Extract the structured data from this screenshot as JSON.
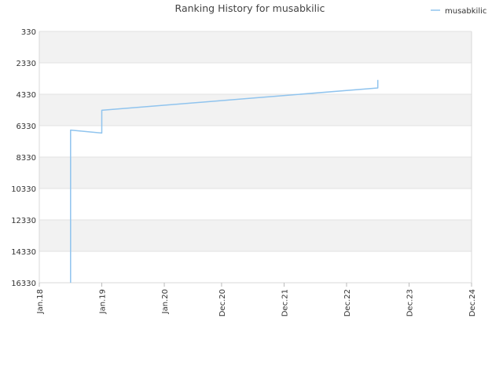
{
  "chart_data": {
    "type": "line",
    "title": "Ranking History for musabkilic",
    "xlabel": "",
    "ylabel": "",
    "y_inverted": true,
    "ylim": [
      330,
      16330
    ],
    "y_ticks": [
      330,
      2330,
      4330,
      6330,
      8330,
      10330,
      12330,
      14330,
      16330
    ],
    "x_ticks": [
      {
        "label": "Jan.18",
        "date": "2018-01"
      },
      {
        "label": "Jan.19",
        "date": "2019-01"
      },
      {
        "label": "Jan.20",
        "date": "2020-01"
      },
      {
        "label": "Dec.20",
        "date": "2020-12"
      },
      {
        "label": "Dec.21",
        "date": "2021-12"
      },
      {
        "label": "Dec.22",
        "date": "2022-12"
      },
      {
        "label": "Dec.23",
        "date": "2023-12"
      },
      {
        "label": "Dec.24",
        "date": "2024-12"
      }
    ],
    "grid": "horizontal alternating bands",
    "legend_position": "top-right",
    "series": [
      {
        "name": "musabkilic",
        "color": "#90c4ee",
        "points": [
          {
            "x": "2018-07",
            "y": 16330
          },
          {
            "x": "2018-07",
            "y": 6650
          },
          {
            "x": "2018-07",
            "y": 6610
          },
          {
            "x": "2019-01",
            "y": 6800
          },
          {
            "x": "2019-01",
            "y": 5400
          },
          {
            "x": "2019-01",
            "y": 5350
          },
          {
            "x": "2023-06",
            "y": 3930
          },
          {
            "x": "2023-06",
            "y": 3420
          }
        ]
      }
    ]
  }
}
